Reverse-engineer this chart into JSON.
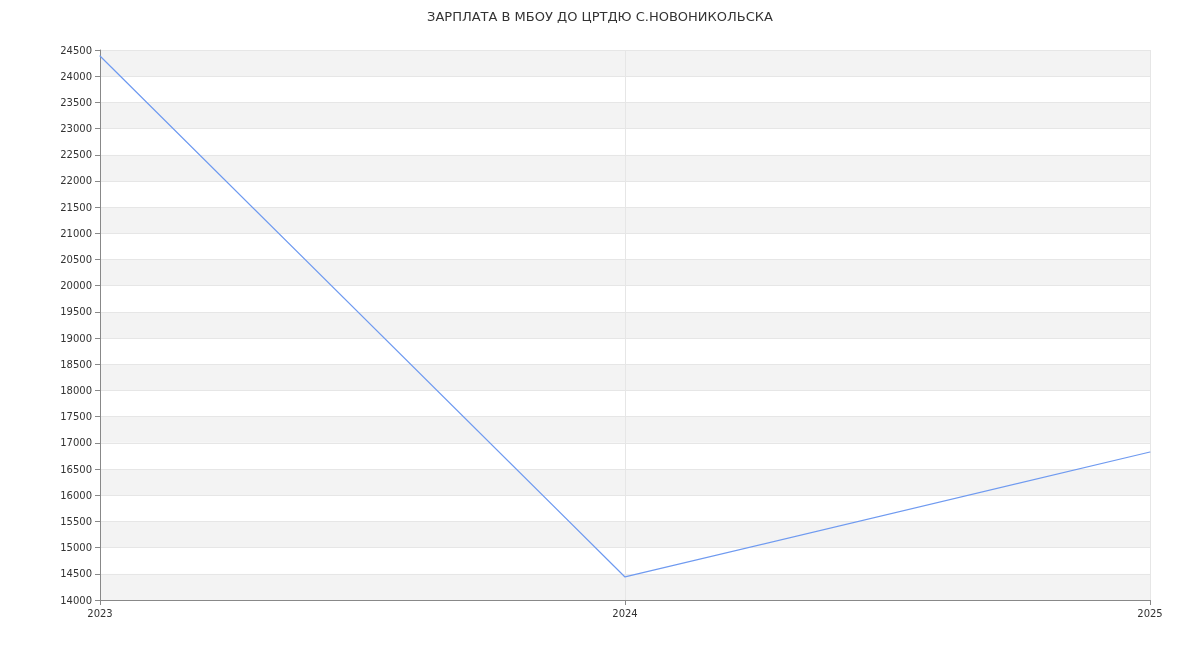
{
  "chart_data": {
    "type": "line",
    "title": "ЗАРПЛАТА В МБОУ ДО ЦРТДЮ С.НОВОНИКОЛЬСКА",
    "x": [
      2023,
      2024,
      2025
    ],
    "series": [
      {
        "color": "#6f9af0",
        "values": [
          24385,
          14440,
          16825
        ]
      }
    ],
    "xlim": [
      2023,
      2025
    ],
    "xticks": [
      2023,
      2024,
      2025
    ],
    "ylim": [
      14000,
      24500
    ],
    "yticks": [
      14000,
      14500,
      15000,
      15500,
      16000,
      16500,
      17000,
      17500,
      18000,
      18500,
      19000,
      19500,
      20000,
      20500,
      21000,
      21500,
      22000,
      22500,
      23000,
      23500,
      24000,
      24500
    ],
    "grid": true,
    "marker": "none",
    "line_style": "solid"
  }
}
